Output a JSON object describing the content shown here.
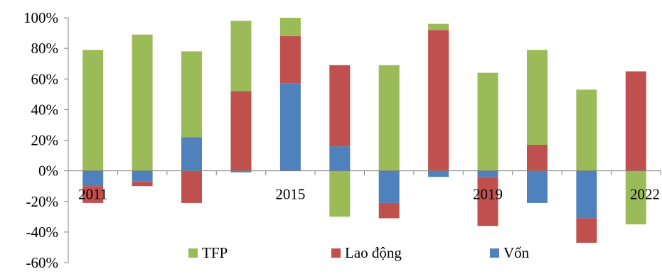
{
  "chart_data": {
    "type": "bar",
    "stacked": true,
    "title": "",
    "xlabel": "",
    "ylabel": "",
    "categories": [
      "2011",
      "2012",
      "2013",
      "2014",
      "2015",
      "2016",
      "2017",
      "2018",
      "2019",
      "2020",
      "2021",
      "2022"
    ],
    "x_tick_labels": [
      "2011",
      "",
      "",
      "",
      "2015",
      "",
      "",
      "",
      "2019",
      "",
      "",
      "2022"
    ],
    "y_ticks": [
      "100%",
      "80%",
      "60%",
      "40%",
      "20%",
      "0%",
      "-20%",
      "-40%",
      "-60%"
    ],
    "ylim": [
      -60,
      100
    ],
    "unit": "%",
    "grid": false,
    "legend_position": "bottom",
    "series": [
      {
        "name": "Vốn",
        "color": "#4f81bd",
        "values": [
          -10,
          -7,
          22,
          -1,
          57,
          16,
          -21,
          -4,
          -4,
          -21,
          -31,
          0
        ]
      },
      {
        "name": "Lao động",
        "color": "#c0504d",
        "values": [
          -11,
          -3,
          -21,
          52,
          31,
          53,
          -10,
          92,
          -32,
          17,
          -16,
          65
        ]
      },
      {
        "name": "TFP",
        "color": "#9bbb59",
        "values": [
          79,
          89,
          56,
          46,
          12,
          -30,
          69,
          4,
          64,
          62,
          53,
          -35
        ]
      }
    ],
    "legend": [
      {
        "label": "TFP",
        "series": 2
      },
      {
        "label": "Lao động",
        "series": 1
      },
      {
        "label": "Vốn",
        "series": 0
      }
    ]
  }
}
